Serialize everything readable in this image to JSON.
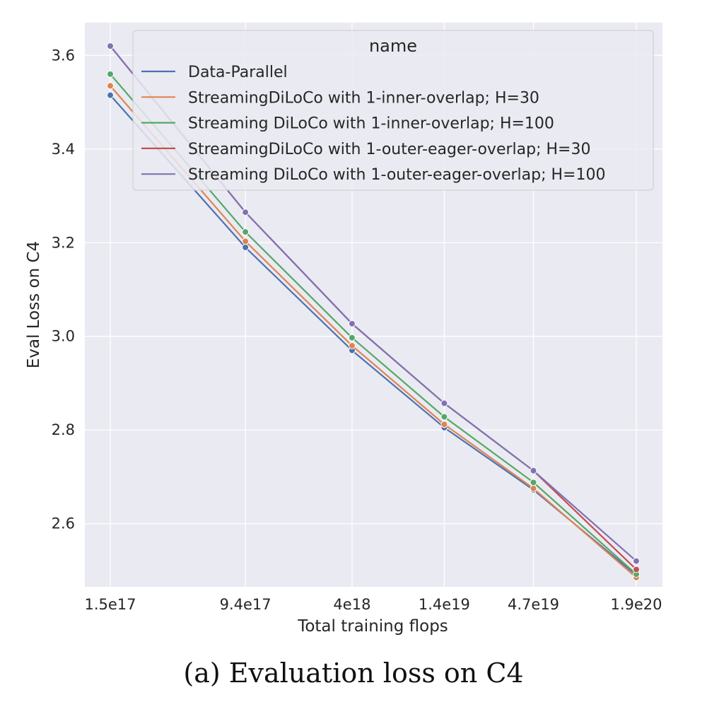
{
  "caption": "(a) Evaluation loss on C4",
  "chart_data": {
    "type": "line",
    "xlabel": "Total training flops",
    "ylabel": "Eval Loss on C4",
    "x": [
      "1.5e17",
      "9.4e17",
      "4e18",
      "1.4e19",
      "4.7e19",
      "1.9e20"
    ],
    "xscale": "log",
    "xticks": [
      "1.5e17",
      "9.4e17",
      "4e18",
      "1.4e19",
      "4.7e19",
      "1.9e20"
    ],
    "yticks": [
      "2.6",
      "2.8",
      "3.0",
      "3.2",
      "3.4",
      "3.6"
    ],
    "ylim": [
      2.465,
      3.67
    ],
    "grid": true,
    "legend": {
      "title": "name",
      "placement": "top-right"
    },
    "series": [
      {
        "name": "Data-Parallel",
        "color": "#4c72b0",
        "values": [
          3.515,
          3.19,
          2.97,
          2.805,
          2.672,
          2.49
        ]
      },
      {
        "name": "StreamingDiLoCo with 1-inner-overlap; H=30",
        "color": "#dd8452",
        "values": [
          3.535,
          3.203,
          2.98,
          2.812,
          2.675,
          2.485
        ]
      },
      {
        "name": "Streaming DiLoCo with 1-inner-overlap; H=100",
        "color": "#55a868",
        "values": [
          3.56,
          3.223,
          2.997,
          2.828,
          2.688,
          2.492
        ]
      },
      {
        "name": "StreamingDiLoCo with 1-outer-eager-overlap; H=30",
        "color": "#c44e52",
        "values": [
          3.62,
          3.265,
          3.027,
          2.857,
          2.713,
          2.502
        ]
      },
      {
        "name": "Streaming DiLoCo with 1-outer-eager-overlap; H=100",
        "color": "#8172b3",
        "values": [
          3.62,
          3.265,
          3.027,
          2.857,
          2.713,
          2.52
        ]
      }
    ]
  }
}
